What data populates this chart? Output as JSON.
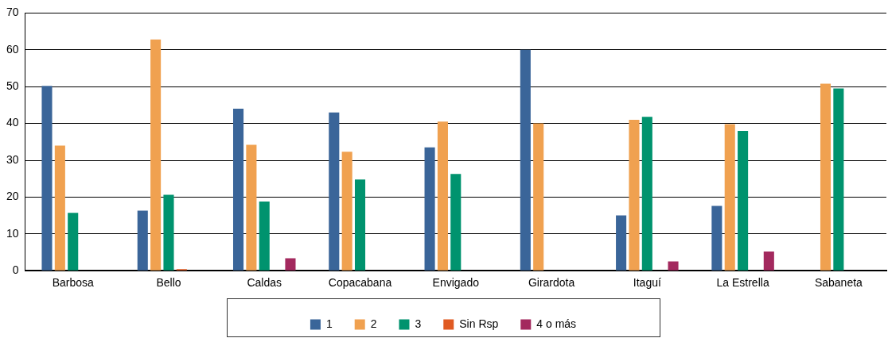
{
  "chart_data": {
    "type": "bar",
    "categories": [
      "Barbosa",
      "Bello",
      "Caldas",
      "Copacabana",
      "Envigado",
      "Girardota",
      "Itaguí",
      "La Estrella",
      "Sabaneta"
    ],
    "series": [
      {
        "name": "1",
        "color": "#3a6599",
        "values": [
          50.2,
          16.3,
          44,
          43,
          33.5,
          60,
          15,
          17.6,
          0
        ]
      },
      {
        "name": "2",
        "color": "#f0a150",
        "values": [
          34,
          62.8,
          34.2,
          32.3,
          40.5,
          40,
          41,
          39.8,
          50.8
        ]
      },
      {
        "name": "3",
        "color": "#00936e",
        "values": [
          15.7,
          20.6,
          18.8,
          24.8,
          26.3,
          0,
          41.8,
          38,
          49.5
        ]
      },
      {
        "name": "Sin Rsp",
        "color": "#e05a22",
        "values": [
          0,
          0.4,
          0,
          0,
          0,
          0,
          0,
          0,
          0
        ]
      },
      {
        "name": "4 o más",
        "color": "#a3295e",
        "values": [
          0,
          0,
          3.4,
          0,
          0,
          0,
          2.5,
          5.2,
          0
        ]
      }
    ],
    "ylim": [
      0,
      70
    ],
    "yticks": [
      0,
      10,
      20,
      30,
      40,
      50,
      60,
      70
    ],
    "grid": "y",
    "legend": "bottom"
  }
}
